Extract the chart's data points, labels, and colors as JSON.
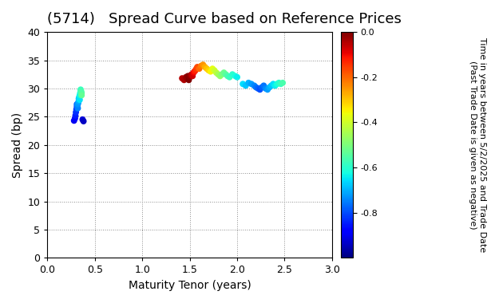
{
  "title": "(5714)   Spread Curve based on Reference Prices",
  "xlabel": "Maturity Tenor (years)",
  "ylabel": "Spread (bp)",
  "colorbar_label_line1": "Time in years between 5/2/2025 and Trade Date",
  "colorbar_label_line2": "(Past Trade Date is given as negative)",
  "xlim": [
    0.0,
    3.0
  ],
  "ylim": [
    0,
    40
  ],
  "xticks": [
    0.0,
    0.5,
    1.0,
    1.5,
    2.0,
    2.5,
    3.0
  ],
  "yticks": [
    0,
    5,
    10,
    15,
    20,
    25,
    30,
    35,
    40
  ],
  "cmap": "jet",
  "vmin": -1.0,
  "vmax": 0.0,
  "colorbar_ticks": [
    0.0,
    -0.2,
    -0.4,
    -0.6,
    -0.8
  ],
  "cluster1": {
    "x": [
      0.28,
      0.29,
      0.295,
      0.3,
      0.305,
      0.31,
      0.31,
      0.315,
      0.32,
      0.32,
      0.325,
      0.33,
      0.33,
      0.335,
      0.34,
      0.34,
      0.345,
      0.35,
      0.35,
      0.355,
      0.36,
      0.36,
      0.37,
      0.38
    ],
    "y": [
      24.3,
      24.7,
      25.2,
      25.8,
      26.3,
      26.8,
      27.2,
      27.0,
      26.5,
      27.2,
      27.5,
      27.8,
      28.2,
      28.5,
      28.0,
      28.8,
      29.2,
      29.5,
      29.8,
      29.5,
      29.2,
      28.8,
      24.5,
      24.2
    ],
    "c": [
      -0.9,
      -0.88,
      -0.85,
      -0.83,
      -0.82,
      -0.8,
      -0.78,
      -0.76,
      -0.75,
      -0.73,
      -0.72,
      -0.7,
      -0.68,
      -0.66,
      -0.65,
      -0.63,
      -0.62,
      -0.6,
      -0.58,
      -0.56,
      -0.55,
      -0.53,
      -0.92,
      -0.94
    ]
  },
  "cluster2": {
    "x": [
      1.42,
      1.44,
      1.46,
      1.47,
      1.48,
      1.49,
      1.5,
      1.51,
      1.52,
      1.53,
      1.54,
      1.55,
      1.56,
      1.57,
      1.58,
      1.6,
      1.62,
      1.64,
      1.66,
      1.68,
      1.7,
      1.72,
      1.74,
      1.76,
      1.78,
      1.8,
      1.82,
      1.84,
      1.86,
      1.88,
      1.9,
      1.92,
      1.95,
      1.98,
      2.0
    ],
    "y": [
      31.8,
      31.5,
      32.0,
      31.8,
      32.2,
      31.5,
      32.0,
      32.3,
      32.5,
      32.2,
      32.8,
      33.0,
      33.2,
      33.5,
      33.8,
      33.5,
      34.0,
      34.2,
      33.8,
      33.5,
      33.2,
      33.0,
      33.5,
      33.2,
      32.8,
      32.5,
      32.2,
      32.5,
      32.8,
      32.5,
      32.2,
      32.0,
      32.5,
      32.2,
      32.0
    ],
    "c": [
      -0.05,
      -0.04,
      -0.03,
      -0.02,
      -0.01,
      0.0,
      -0.01,
      -0.03,
      -0.05,
      -0.07,
      -0.09,
      -0.11,
      -0.13,
      -0.15,
      -0.17,
      -0.2,
      -0.22,
      -0.25,
      -0.27,
      -0.3,
      -0.32,
      -0.35,
      -0.37,
      -0.4,
      -0.42,
      -0.45,
      -0.47,
      -0.5,
      -0.52,
      -0.54,
      -0.56,
      -0.58,
      -0.6,
      -0.62,
      -0.64
    ]
  },
  "cluster3": {
    "x": [
      2.06,
      2.09,
      2.12,
      2.15,
      2.18,
      2.2,
      2.22,
      2.24,
      2.26,
      2.28,
      2.3,
      2.32,
      2.34,
      2.36,
      2.38,
      2.4,
      2.42,
      2.44,
      2.46,
      2.48
    ],
    "y": [
      30.8,
      30.5,
      31.0,
      30.8,
      30.5,
      30.2,
      30.0,
      29.8,
      30.2,
      30.5,
      30.0,
      29.8,
      30.2,
      30.5,
      30.8,
      30.5,
      30.8,
      31.0,
      30.8,
      31.0
    ],
    "c": [
      -0.66,
      -0.68,
      -0.7,
      -0.72,
      -0.74,
      -0.76,
      -0.78,
      -0.8,
      -0.78,
      -0.76,
      -0.74,
      -0.72,
      -0.7,
      -0.68,
      -0.66,
      -0.64,
      -0.62,
      -0.6,
      -0.58,
      -0.56
    ]
  },
  "background_color": "#ffffff",
  "marker_size": 22,
  "marker": "o",
  "title_fontsize": 13,
  "axis_fontsize": 10,
  "colorbar_fontsize": 8
}
